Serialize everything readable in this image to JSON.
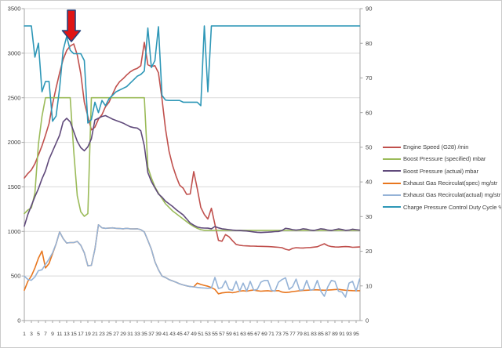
{
  "axes": {
    "left_ticks": [
      0,
      500,
      1000,
      1500,
      2000,
      2500,
      3000,
      3500
    ],
    "right_ticks": [
      0,
      10,
      20,
      30,
      40,
      50,
      60,
      70,
      80,
      90
    ],
    "x_tick_labels": [
      1,
      3,
      5,
      7,
      9,
      11,
      13,
      15,
      17,
      19,
      21,
      23,
      25,
      27,
      29,
      31,
      33,
      35,
      37,
      39,
      41,
      43,
      45,
      47,
      49,
      51,
      53,
      55,
      57,
      59,
      61,
      63,
      65,
      67,
      69,
      71,
      73,
      75,
      77,
      79,
      81,
      83,
      85,
      87,
      89,
      91,
      93,
      95
    ],
    "grid_color": "#d9d9d9",
    "axis_color": "#a6a6a6",
    "label_color": "#3f3f3f"
  },
  "legend": {
    "items": [
      {
        "label": "Engine Speed (G28)  /min",
        "color": "#c0504d"
      },
      {
        "label": "Boost Pressure (specified)  mbar",
        "color": "#9bbb59"
      },
      {
        "label": "Boost Pressure (actual)  mbar",
        "color": "#604a7b"
      },
      {
        "label": "Exhaust Gas  Recirculat(spec)  mg/str",
        "color": "#e8761e"
      },
      {
        "label": "Exhaust Gas  Recirculat(actual)  mg/str",
        "color": "#95b3d7"
      },
      {
        "label": "Charge Pressure Control Duty Cycle  %",
        "color": "#2e97b7"
      }
    ]
  },
  "annotation": {
    "arrow": {
      "fill": "#e01414",
      "stroke": "#27457e",
      "x_center": 90,
      "y_top": 12,
      "y_tip": 52
    }
  },
  "chart_data": {
    "type": "line",
    "note": "96 samples per series; x axis = sample index 1..96, labels every 2nd sample",
    "x_count": 96,
    "left_axis": {
      "range": [
        0,
        3500
      ],
      "step": 500
    },
    "right_axis": {
      "range": [
        0,
        90
      ],
      "step": 10
    },
    "grid": true,
    "legend_position": "right",
    "series": [
      {
        "name": "Engine Speed (G28)  /min",
        "color": "#c0504d",
        "axis": "left",
        "values": [
          1600,
          1650,
          1690,
          1760,
          1858,
          1960,
          2080,
          2210,
          2430,
          2610,
          2780,
          2930,
          3030,
          3080,
          3104,
          2980,
          2768,
          2450,
          2290,
          2140,
          2170,
          2260,
          2310,
          2400,
          2450,
          2540,
          2625,
          2680,
          2715,
          2755,
          2790,
          2815,
          2830,
          2860,
          3122,
          2870,
          2850,
          2860,
          2780,
          2490,
          2150,
          1900,
          1740,
          1620,
          1520,
          1485,
          1416,
          1420,
          1672,
          1480,
          1270,
          1190,
          1140,
          1260,
          1080,
          900,
          890,
          965,
          940,
          895,
          855,
          845,
          840,
          838,
          836,
          835,
          834,
          833,
          832,
          830,
          828,
          825,
          822,
          818,
          800,
          791,
          810,
          818,
          815,
          814,
          818,
          820,
          824,
          828,
          845,
          862,
          840,
          830,
          826,
          825,
          828,
          830,
          828,
          822,
          824,
          826
        ]
      },
      {
        "name": "Boost Pressure (specified)  mbar",
        "color": "#9bbb59",
        "axis": "left",
        "values": [
          1200,
          1240,
          1265,
          1430,
          1980,
          2290,
          2500,
          2500,
          2500,
          2500,
          2500,
          2500,
          2500,
          2500,
          1900,
          1400,
          1220,
          1170,
          1200,
          2500,
          2500,
          2500,
          2500,
          2500,
          2500,
          2500,
          2500,
          2500,
          2500,
          2500,
          2500,
          2500,
          2500,
          2500,
          2500,
          1720,
          1600,
          1500,
          1430,
          1370,
          1310,
          1270,
          1230,
          1200,
          1170,
          1140,
          1110,
          1080,
          1055,
          1035,
          1020,
          1012,
          1012,
          1012,
          1012,
          1012,
          1012,
          1012,
          1012,
          1012,
          1012,
          1012,
          1012,
          1012,
          1012,
          1012,
          1012,
          1012,
          1012,
          1012,
          1012,
          1012,
          1012,
          1012,
          1012,
          1012,
          1012,
          1012,
          1012,
          1012,
          1012,
          1012,
          1012,
          1012,
          1012,
          1012,
          1012,
          1012,
          1012,
          1012,
          1012,
          1012,
          1012,
          1012,
          1012,
          1012
        ]
      },
      {
        "name": "Boost Pressure (actual)  mbar",
        "color": "#604a7b",
        "axis": "left",
        "values": [
          1060,
          1190,
          1290,
          1390,
          1480,
          1590,
          1680,
          1810,
          1900,
          1990,
          2080,
          2230,
          2270,
          2230,
          2120,
          2010,
          1940,
          1905,
          1950,
          2040,
          2250,
          2270,
          2290,
          2300,
          2280,
          2260,
          2245,
          2230,
          2215,
          2195,
          2175,
          2165,
          2160,
          2130,
          1960,
          1660,
          1560,
          1490,
          1420,
          1385,
          1340,
          1310,
          1280,
          1245,
          1215,
          1185,
          1140,
          1095,
          1070,
          1050,
          1040,
          1038,
          1037,
          1030,
          1055,
          1040,
          1030,
          1025,
          1020,
          1015,
          1012,
          1010,
          1008,
          1005,
          1000,
          995,
          990,
          988,
          990,
          992,
          995,
          998,
          1000,
          1010,
          1035,
          1030,
          1020,
          1015,
          1020,
          1030,
          1025,
          1015,
          1010,
          1020,
          1030,
          1025,
          1015,
          1010,
          1020,
          1028,
          1022,
          1012,
          1015,
          1025,
          1020,
          1015
        ]
      },
      {
        "name": "Exhaust Gas  Recirculat(spec)  mg/str",
        "color": "#e8761e",
        "axis": "left",
        "values": [
          340,
          440,
          500,
          590,
          700,
          780,
          590,
          640,
          750,
          860,
          995,
          920,
          870,
          875,
          875,
          888,
          845,
          760,
          615,
          620,
          800,
          1075,
          1040,
          1035,
          1038,
          1040,
          1035,
          1032,
          1030,
          1035,
          1030,
          1028,
          1030,
          1020,
          995,
          900,
          800,
          660,
          570,
          500,
          483,
          460,
          445,
          430,
          412,
          400,
          390,
          382,
          378,
          420,
          405,
          395,
          385,
          370,
          350,
          300,
          310,
          315,
          318,
          312,
          320,
          330,
          335,
          330,
          338,
          342,
          335,
          330,
          332,
          335,
          330,
          334,
          336,
          320,
          315,
          318,
          325,
          330,
          335,
          338,
          340,
          342,
          345,
          345,
          342,
          340,
          342,
          345,
          348,
          350,
          345,
          340,
          338,
          336,
          335,
          335
        ]
      },
      {
        "name": "Exhaust Gas  Recirculat(actual)  mg/str",
        "color": "#95b3d7",
        "axis": "left",
        "values": [
          498,
          462,
          452,
          490,
          560,
          570,
          630,
          690,
          760,
          860,
          995,
          920,
          870,
          875,
          875,
          888,
          845,
          760,
          615,
          620,
          800,
          1075,
          1040,
          1035,
          1038,
          1040,
          1035,
          1032,
          1030,
          1035,
          1030,
          1028,
          1030,
          1020,
          995,
          900,
          800,
          660,
          570,
          500,
          483,
          460,
          445,
          430,
          412,
          400,
          390,
          382,
          378,
          372,
          368,
          365,
          362,
          365,
          484,
          360,
          370,
          445,
          350,
          340,
          440,
          330,
          420,
          330,
          440,
          340,
          350,
          430,
          450,
          450,
          340,
          330,
          430,
          460,
          480,
          350,
          380,
          465,
          340,
          345,
          450,
          340,
          350,
          450,
          330,
          273,
          380,
          450,
          440,
          330,
          320,
          264,
          420,
          440,
          330,
          467
        ]
      },
      {
        "name": "Charge Pressure Control Duty Cycle  %",
        "color": "#2e97b7",
        "axis": "right",
        "values": [
          85,
          85,
          85,
          76,
          80,
          66,
          69,
          69,
          57.5,
          59,
          67,
          78,
          82,
          78,
          77,
          77,
          77,
          75,
          57,
          58,
          63,
          60,
          63.5,
          62,
          64,
          65,
          66,
          66.5,
          67,
          67.5,
          68.5,
          69.5,
          70.5,
          71,
          72,
          84.4,
          73,
          75,
          84.8,
          65,
          63.6,
          63.5,
          63.5,
          63.5,
          63.5,
          63,
          63,
          63,
          63,
          63,
          62,
          85,
          66,
          85,
          85,
          85,
          85,
          85,
          85,
          85,
          85,
          85,
          85,
          85,
          85,
          85,
          85,
          85,
          85,
          85,
          85,
          85,
          85,
          85,
          85,
          85,
          85,
          85,
          85,
          85,
          85,
          85,
          85,
          85,
          85,
          85,
          85,
          85,
          85,
          85,
          85,
          85,
          85,
          85,
          85,
          85
        ]
      }
    ]
  }
}
